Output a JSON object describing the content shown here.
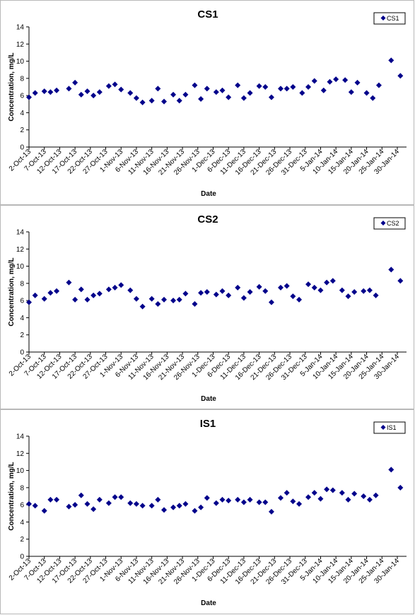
{
  "x_ticks": [
    "2-Oct-13",
    "7-Oct-13",
    "12-Oct-13",
    "17-Oct-13",
    "22-Oct-13",
    "27-Oct-13",
    "1-Nov-13",
    "6-Nov-13",
    "11-Nov-13",
    "16-Nov-13",
    "21-Nov-13",
    "26-Nov-13",
    "1-Dec-13",
    "6-Dec-13",
    "11-Dec-13",
    "16-Dec-13",
    "21-Dec-13",
    "26-Dec-13",
    "31-Dec-13",
    "5-Jan-14",
    "10-Jan-14",
    "15-Jan-14",
    "20-Jan-14",
    "25-Jan-14",
    "30-Jan-14"
  ],
  "marker_color": "#00008b",
  "chart_data": [
    {
      "type": "scatter",
      "title": "CS1",
      "xlabel": "Date",
      "ylabel": "Concentration, mg/L",
      "xlim": [
        "2-Oct-13",
        "2-Feb-14"
      ],
      "ylim": [
        0,
        14
      ],
      "y_ticks": [
        0,
        2,
        4,
        6,
        8,
        10,
        12,
        14
      ],
      "grid": false,
      "legend_position": "top-right",
      "series": [
        {
          "name": "CS1",
          "x": [
            "2-Oct-13",
            "4-Oct-13",
            "7-Oct-13",
            "9-Oct-13",
            "11-Oct-13",
            "15-Oct-13",
            "17-Oct-13",
            "19-Oct-13",
            "21-Oct-13",
            "23-Oct-13",
            "25-Oct-13",
            "28-Oct-13",
            "30-Oct-13",
            "1-Nov-13",
            "4-Nov-13",
            "6-Nov-13",
            "8-Nov-13",
            "11-Nov-13",
            "13-Nov-13",
            "15-Nov-13",
            "18-Nov-13",
            "20-Nov-13",
            "22-Nov-13",
            "25-Nov-13",
            "27-Nov-13",
            "29-Nov-13",
            "2-Dec-13",
            "4-Dec-13",
            "6-Dec-13",
            "9-Dec-13",
            "11-Dec-13",
            "13-Dec-13",
            "16-Dec-13",
            "18-Dec-13",
            "20-Dec-13",
            "23-Dec-13",
            "25-Dec-13",
            "27-Dec-13",
            "30-Dec-13",
            "1-Jan-14",
            "3-Jan-14",
            "6-Jan-14",
            "8-Jan-14",
            "10-Jan-14",
            "13-Jan-14",
            "15-Jan-14",
            "17-Jan-14",
            "20-Jan-14",
            "22-Jan-14",
            "24-Jan-14",
            "28-Jan-14",
            "31-Jan-14"
          ],
          "y": [
            5.8,
            6.3,
            6.5,
            6.4,
            6.6,
            6.8,
            7.5,
            6.1,
            6.5,
            6.0,
            6.4,
            7.1,
            7.3,
            6.7,
            6.3,
            5.7,
            5.2,
            5.4,
            6.8,
            5.3,
            6.1,
            5.4,
            6.1,
            7.2,
            5.6,
            6.8,
            6.4,
            6.6,
            5.8,
            7.2,
            5.7,
            6.3,
            7.1,
            7.0,
            5.8,
            6.8,
            6.8,
            7.0,
            6.3,
            7.0,
            7.7,
            6.6,
            7.6,
            7.9,
            7.8,
            6.4,
            7.5,
            6.3,
            5.7,
            7.2,
            10.1,
            8.3
          ]
        }
      ]
    },
    {
      "type": "scatter",
      "title": "CS2",
      "xlabel": "Date",
      "ylabel": "Concentration, mg/L",
      "xlim": [
        "2-Oct-13",
        "2-Feb-14"
      ],
      "ylim": [
        0,
        14
      ],
      "y_ticks": [
        0,
        2,
        4,
        6,
        8,
        10,
        12,
        14
      ],
      "grid": false,
      "legend_position": "top-right",
      "series": [
        {
          "name": "CS2",
          "x": [
            "2-Oct-13",
            "4-Oct-13",
            "7-Oct-13",
            "9-Oct-13",
            "11-Oct-13",
            "15-Oct-13",
            "17-Oct-13",
            "19-Oct-13",
            "21-Oct-13",
            "23-Oct-13",
            "25-Oct-13",
            "28-Oct-13",
            "30-Oct-13",
            "1-Nov-13",
            "4-Nov-13",
            "6-Nov-13",
            "8-Nov-13",
            "11-Nov-13",
            "13-Nov-13",
            "15-Nov-13",
            "18-Nov-13",
            "20-Nov-13",
            "22-Nov-13",
            "25-Nov-13",
            "27-Nov-13",
            "29-Nov-13",
            "2-Dec-13",
            "4-Dec-13",
            "6-Dec-13",
            "9-Dec-13",
            "11-Dec-13",
            "13-Dec-13",
            "16-Dec-13",
            "18-Dec-13",
            "20-Dec-13",
            "23-Dec-13",
            "25-Dec-13",
            "27-Dec-13",
            "29-Dec-13",
            "1-Jan-14",
            "3-Jan-14",
            "5-Jan-14",
            "7-Jan-14",
            "9-Jan-14",
            "12-Jan-14",
            "14-Jan-14",
            "16-Jan-14",
            "19-Jan-14",
            "21-Jan-14",
            "23-Jan-14",
            "28-Jan-14",
            "31-Jan-14"
          ],
          "y": [
            5.8,
            6.6,
            6.2,
            6.9,
            7.1,
            8.1,
            6.1,
            7.3,
            6.1,
            6.6,
            6.8,
            7.3,
            7.5,
            7.8,
            7.2,
            6.2,
            5.3,
            6.2,
            5.6,
            6.1,
            6.0,
            6.1,
            6.8,
            5.6,
            6.9,
            7.0,
            6.7,
            7.1,
            6.6,
            7.5,
            6.3,
            7.0,
            7.6,
            7.1,
            5.8,
            7.5,
            7.7,
            6.5,
            6.1,
            7.9,
            7.5,
            7.2,
            8.1,
            8.3,
            7.2,
            6.5,
            7.0,
            7.1,
            7.2,
            6.6,
            9.6,
            8.3
          ]
        }
      ]
    },
    {
      "type": "scatter",
      "title": "IS1",
      "xlabel": "Date",
      "ylabel": "Concentration, mg/L",
      "xlim": [
        "2-Oct-13",
        "2-Feb-14"
      ],
      "ylim": [
        0,
        14
      ],
      "y_ticks": [
        0,
        2,
        4,
        6,
        8,
        10,
        12,
        14
      ],
      "grid": false,
      "legend_position": "top-right",
      "series": [
        {
          "name": "IS1",
          "x": [
            "2-Oct-13",
            "4-Oct-13",
            "7-Oct-13",
            "9-Oct-13",
            "11-Oct-13",
            "15-Oct-13",
            "17-Oct-13",
            "19-Oct-13",
            "21-Oct-13",
            "23-Oct-13",
            "25-Oct-13",
            "28-Oct-13",
            "30-Oct-13",
            "1-Nov-13",
            "4-Nov-13",
            "6-Nov-13",
            "8-Nov-13",
            "11-Nov-13",
            "13-Nov-13",
            "15-Nov-13",
            "18-Nov-13",
            "20-Nov-13",
            "22-Nov-13",
            "25-Nov-13",
            "27-Nov-13",
            "29-Nov-13",
            "2-Dec-13",
            "4-Dec-13",
            "6-Dec-13",
            "9-Dec-13",
            "11-Dec-13",
            "13-Dec-13",
            "16-Dec-13",
            "18-Dec-13",
            "20-Dec-13",
            "23-Dec-13",
            "25-Dec-13",
            "27-Dec-13",
            "29-Dec-13",
            "1-Jan-14",
            "3-Jan-14",
            "5-Jan-14",
            "7-Jan-14",
            "9-Jan-14",
            "12-Jan-14",
            "14-Jan-14",
            "16-Jan-14",
            "19-Jan-14",
            "21-Jan-14",
            "23-Jan-14",
            "28-Jan-14",
            "31-Jan-14"
          ],
          "y": [
            6.1,
            5.9,
            5.3,
            6.6,
            6.6,
            5.8,
            6.0,
            7.1,
            6.1,
            5.5,
            6.6,
            6.2,
            6.9,
            6.9,
            6.2,
            6.1,
            5.9,
            5.9,
            6.6,
            5.4,
            5.7,
            5.9,
            6.1,
            5.3,
            5.7,
            6.8,
            6.2,
            6.6,
            6.5,
            6.6,
            6.3,
            6.6,
            6.3,
            6.3,
            5.2,
            6.8,
            7.4,
            6.4,
            6.1,
            6.9,
            7.4,
            6.7,
            7.8,
            7.7,
            7.4,
            6.6,
            7.3,
            7.0,
            6.6,
            7.1,
            10.1,
            8.0
          ]
        }
      ]
    }
  ]
}
